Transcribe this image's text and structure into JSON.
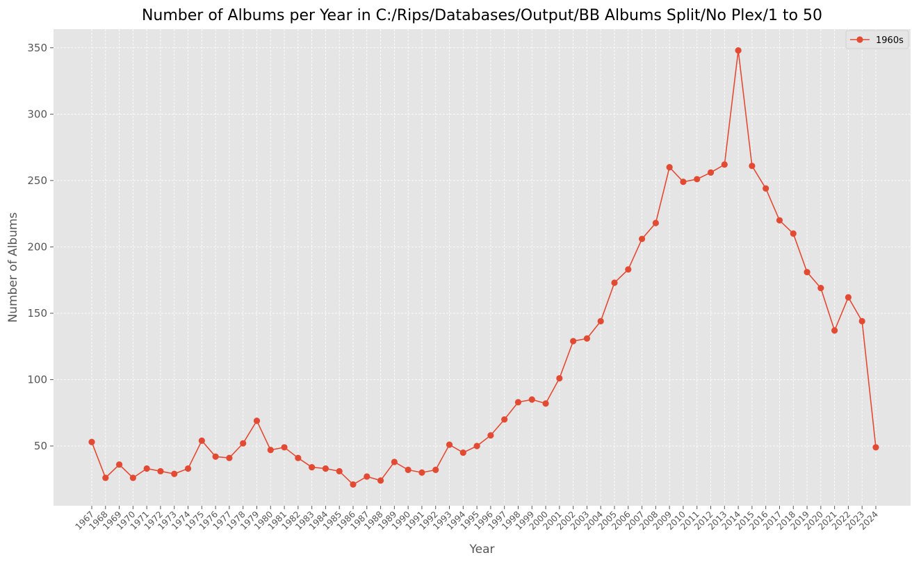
{
  "chart_data": {
    "type": "line",
    "title": "Number of Albums per Year in C:/Rips/Databases/Output/BB Albums Split/No Plex/1 to 50",
    "xlabel": "Year",
    "ylabel": "Number of Albums",
    "x": [
      "1967",
      "1968",
      "1969",
      "1970",
      "1971",
      "1972",
      "1973",
      "1974",
      "1975",
      "1976",
      "1977",
      "1978",
      "1979",
      "1980",
      "1981",
      "1982",
      "1983",
      "1984",
      "1985",
      "1986",
      "1987",
      "1988",
      "1989",
      "1990",
      "1991",
      "1992",
      "1993",
      "1994",
      "1995",
      "1996",
      "1997",
      "1998",
      "1999",
      "2000",
      "2001",
      "2002",
      "2003",
      "2004",
      "2005",
      "2006",
      "2007",
      "2008",
      "2009",
      "2010",
      "2011",
      "2012",
      "2013",
      "2014",
      "2015",
      "2016",
      "2017",
      "2018",
      "2019",
      "2020",
      "2021",
      "2022",
      "2023",
      "2024"
    ],
    "series": [
      {
        "name": "1960s",
        "color": "#e24a33",
        "marker": "circle",
        "values": [
          53,
          26,
          36,
          26,
          33,
          31,
          29,
          33,
          54,
          42,
          41,
          52,
          69,
          47,
          49,
          41,
          34,
          33,
          31,
          21,
          27,
          24,
          38,
          32,
          30,
          32,
          51,
          45,
          50,
          58,
          70,
          83,
          85,
          82,
          101,
          129,
          131,
          144,
          173,
          183,
          206,
          218,
          260,
          249,
          251,
          256,
          262,
          348,
          261,
          244,
          220,
          210,
          181,
          169,
          137,
          162,
          144,
          49
        ]
      }
    ],
    "ylim": [
      5,
      364
    ],
    "yticks": [
      50,
      100,
      150,
      200,
      250,
      300,
      350
    ],
    "xtick_rotation": 45,
    "grid": true,
    "legend": "upper right",
    "background": "#e5e5e5",
    "grid_color": "#ffffff"
  }
}
